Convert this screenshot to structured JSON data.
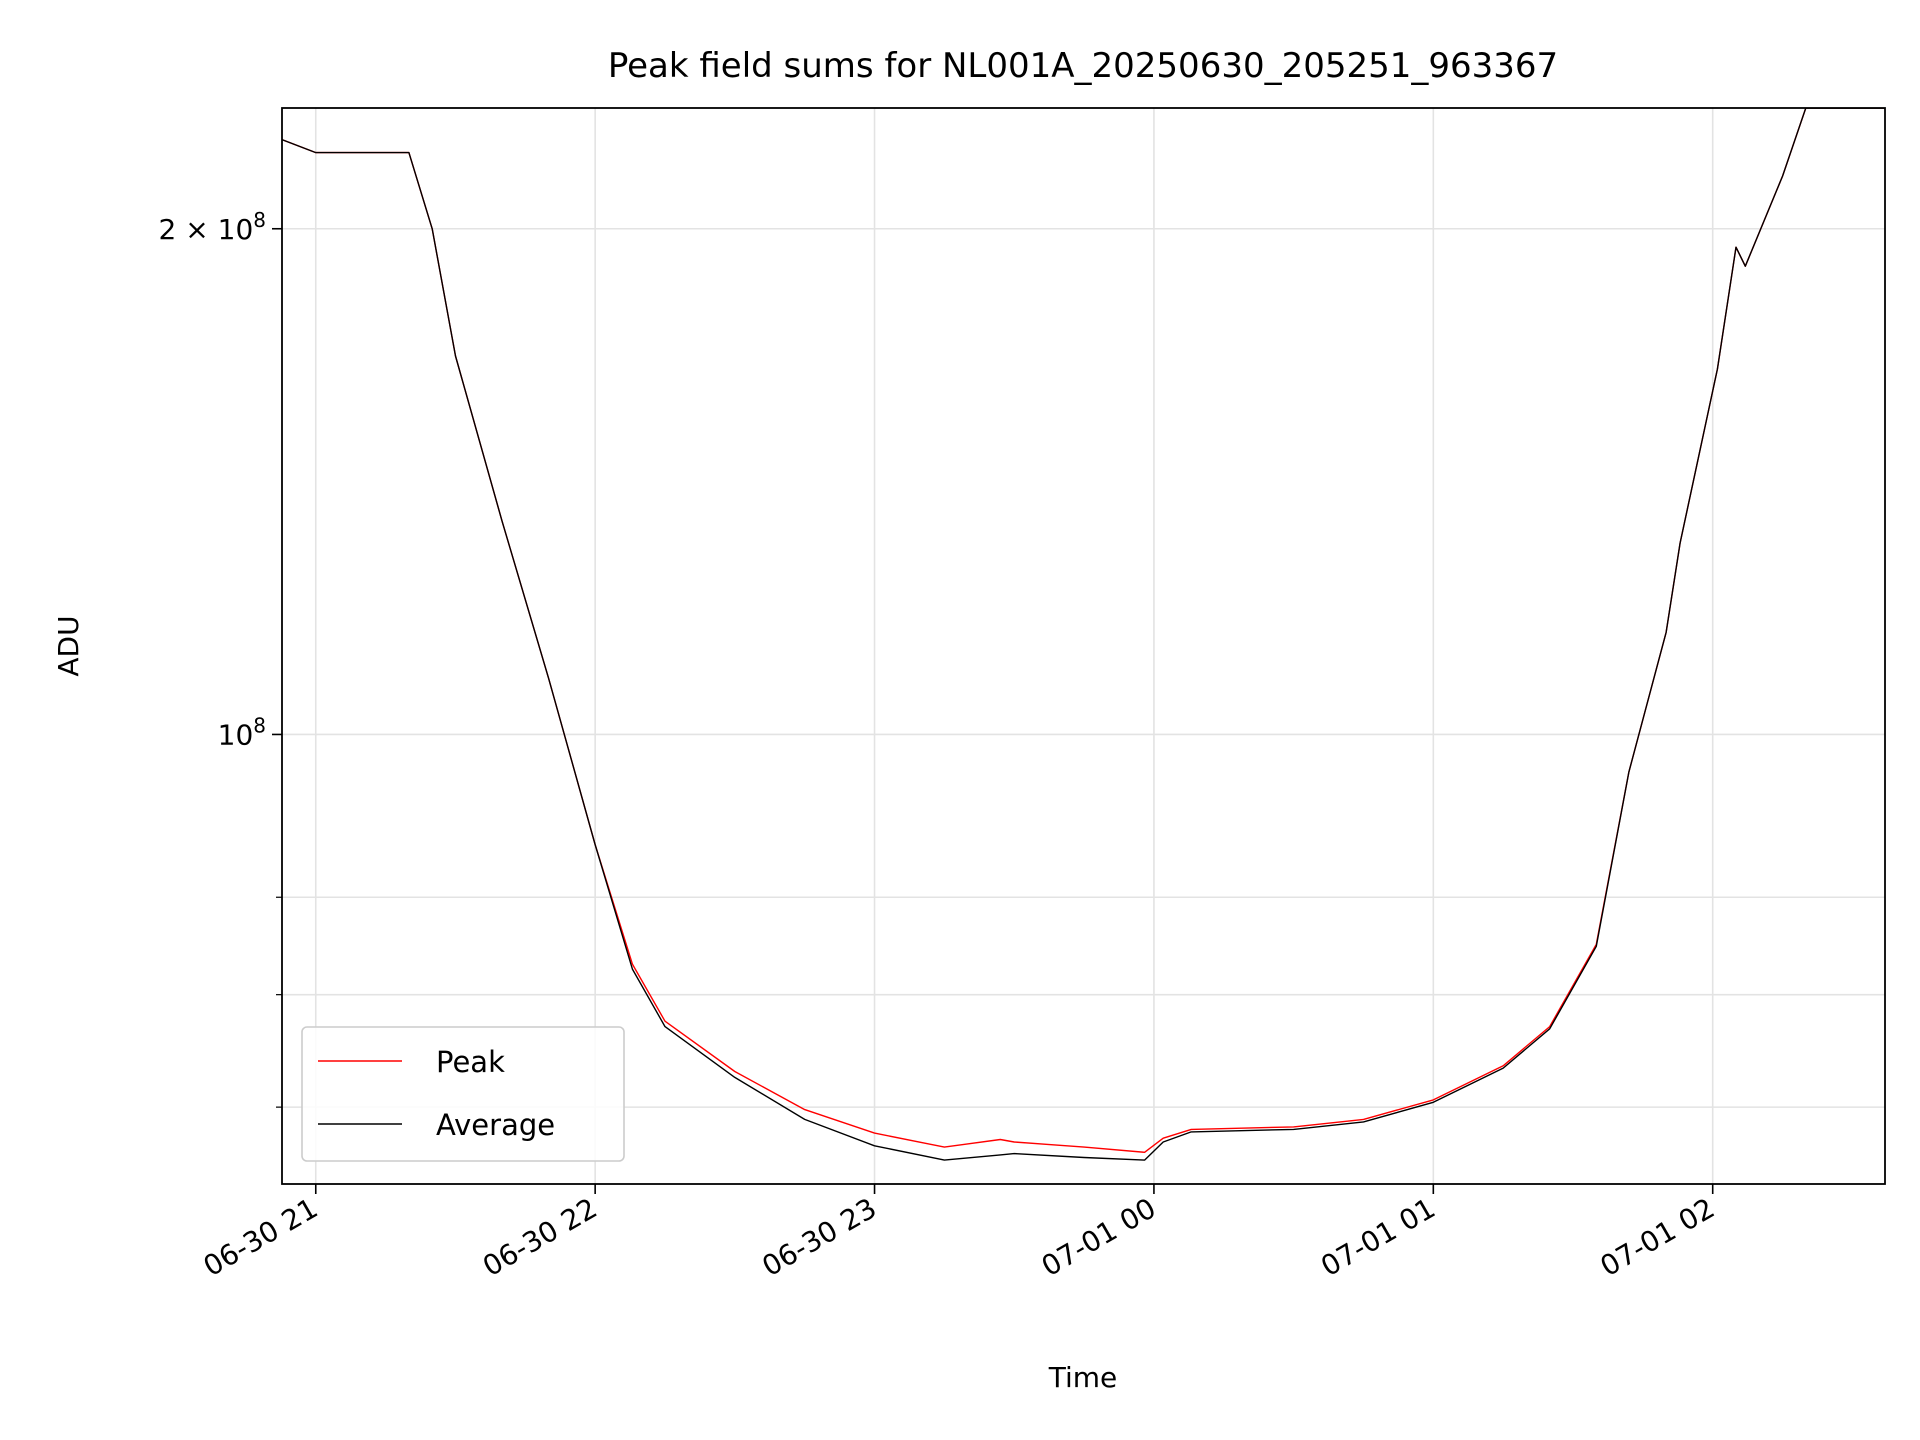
{
  "chart_data": {
    "type": "line",
    "title": "Peak field sums for NL001A_20250630_205251_963367",
    "xlabel": "Time",
    "ylabel": "ADU",
    "yscale": "log",
    "ylim": [
      54000000,
      236000000
    ],
    "xlim": [
      "2025-06-30 20:52:45",
      "2025-07-01 02:37:00"
    ],
    "x_ticks": [
      {
        "t": "2025-06-30 21:00",
        "label": "06-30 21"
      },
      {
        "t": "2025-06-30 22:00",
        "label": "06-30 22"
      },
      {
        "t": "2025-06-30 23:00",
        "label": "06-30 23"
      },
      {
        "t": "2025-07-01 00:00",
        "label": "07-01 00"
      },
      {
        "t": "2025-07-01 01:00",
        "label": "07-01 01"
      },
      {
        "t": "2025-07-01 02:00",
        "label": "07-01 02"
      }
    ],
    "y_major_ticks": [
      {
        "value": 100000000,
        "base": "10",
        "exp": "8",
        "coef": ""
      },
      {
        "value": 200000000,
        "base": "10",
        "exp": "8",
        "coef": "2"
      }
    ],
    "y_minor_ticks": [
      60000000,
      70000000,
      80000000
    ],
    "grid": true,
    "legend_position": "lower left",
    "series": [
      {
        "name": "Peak",
        "color": "#ff0000",
        "x": [
          "2025-06-30 20:52:45",
          "2025-06-30 21:00",
          "2025-06-30 21:10",
          "2025-06-30 21:20",
          "2025-06-30 21:25",
          "2025-06-30 21:30",
          "2025-06-30 21:40",
          "2025-06-30 21:50",
          "2025-06-30 22:00",
          "2025-06-30 22:08",
          "2025-06-30 22:15",
          "2025-06-30 22:30",
          "2025-06-30 22:45",
          "2025-06-30 23:00",
          "2025-06-30 23:15",
          "2025-06-30 23:27",
          "2025-06-30 23:30",
          "2025-06-30 23:45",
          "2025-06-30 23:58",
          "2025-07-01 00:02",
          "2025-07-01 00:08",
          "2025-07-01 00:30",
          "2025-07-01 00:45",
          "2025-07-01 01:00",
          "2025-07-01 01:15",
          "2025-07-01 01:25",
          "2025-07-01 01:35",
          "2025-07-01 01:42",
          "2025-07-01 01:50",
          "2025-07-01 01:53",
          "2025-07-01 02:01",
          "2025-07-01 02:05",
          "2025-07-01 02:07",
          "2025-07-01 02:15",
          "2025-07-01 02:20",
          "2025-07-01 02:37"
        ],
        "values": [
          226000000,
          222000000,
          222000000,
          222000000,
          200000000,
          168000000,
          134000000,
          108000000,
          86000000,
          73000000,
          67500000,
          63000000,
          59800000,
          57900000,
          56800000,
          57400000,
          57200000,
          56800000,
          56400000,
          57500000,
          58200000,
          58400000,
          59000000,
          60600000,
          63500000,
          67000000,
          75000000,
          95000000,
          115000000,
          130000000,
          165000000,
          195000000,
          190000000,
          215000000,
          236000000,
          236000000
        ]
      },
      {
        "name": "Average",
        "color": "#000000",
        "x": [
          "2025-06-30 20:52:45",
          "2025-06-30 21:00",
          "2025-06-30 21:10",
          "2025-06-30 21:20",
          "2025-06-30 21:25",
          "2025-06-30 21:30",
          "2025-06-30 21:40",
          "2025-06-30 21:50",
          "2025-06-30 22:00",
          "2025-06-30 22:08",
          "2025-06-30 22:15",
          "2025-06-30 22:30",
          "2025-06-30 22:45",
          "2025-06-30 23:00",
          "2025-06-30 23:15",
          "2025-06-30 23:27",
          "2025-06-30 23:30",
          "2025-06-30 23:45",
          "2025-06-30 23:58",
          "2025-07-01 00:02",
          "2025-07-01 00:08",
          "2025-07-01 00:30",
          "2025-07-01 00:45",
          "2025-07-01 01:00",
          "2025-07-01 01:15",
          "2025-07-01 01:25",
          "2025-07-01 01:35",
          "2025-07-01 01:42",
          "2025-07-01 01:50",
          "2025-07-01 01:53",
          "2025-07-01 02:01",
          "2025-07-01 02:05",
          "2025-07-01 02:07",
          "2025-07-01 02:15",
          "2025-07-01 02:20",
          "2025-07-01 02:37"
        ],
        "values": [
          226000000,
          222000000,
          222000000,
          222000000,
          200000000,
          168000000,
          134000000,
          108000000,
          86000000,
          72500000,
          67000000,
          62500000,
          59000000,
          56900000,
          55800000,
          56200000,
          56300000,
          56000000,
          55800000,
          57200000,
          58000000,
          58200000,
          58800000,
          60400000,
          63300000,
          66800000,
          74800000,
          95000000,
          115000000,
          130000000,
          165000000,
          195000000,
          190000000,
          215000000,
          236000000,
          236000000
        ]
      }
    ]
  }
}
